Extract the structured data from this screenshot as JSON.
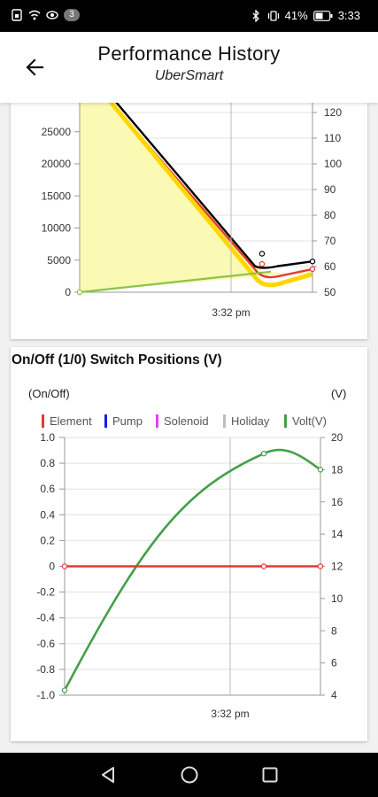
{
  "status_bar": {
    "time": "3:33",
    "battery": "41%",
    "notification_count": "3",
    "icons": [
      "sim-icon",
      "wifi-icon",
      "eye-icon",
      "bluetooth-icon",
      "vibrate-icon",
      "battery-icon"
    ]
  },
  "app_bar": {
    "title": "Performance History",
    "subtitle": "UberSmart",
    "back_icon": "arrow-left-icon"
  },
  "chart_data": [
    {
      "type": "line",
      "title": "",
      "x_tick_label": "3:32 pm",
      "y_left_ticks": [
        "25000",
        "20000",
        "15000",
        "10000",
        "5000",
        "0"
      ],
      "y_right_ticks": [
        "120",
        "110",
        "100",
        "90",
        "80",
        "70",
        "60",
        "50"
      ],
      "ylim_left": [
        0,
        30000
      ],
      "ylim_right": [
        50,
        125
      ],
      "x": [
        0,
        1,
        2,
        3
      ],
      "series": [
        {
          "axis": "right",
          "color": "#000000",
          "values": [
            null,
            130,
            65,
            62
          ]
        },
        {
          "axis": "right",
          "color": "#e53935",
          "values": [
            null,
            130,
            61,
            59
          ]
        },
        {
          "axis": "right",
          "color": "#ffd600",
          "values": [
            null,
            130,
            58,
            57
          ]
        },
        {
          "axis": "left",
          "color": "#8bc34a",
          "values": [
            0,
            null,
            3200,
            null
          ]
        }
      ],
      "area_fill_color": "#fafab4"
    },
    {
      "type": "line",
      "title": "On/Off (1/0) Switch Positions (V)",
      "ylabel_left": "(On/Off)",
      "ylabel_right": "(V)",
      "x_tick_label": "3:32 pm",
      "legend": [
        {
          "name": "Element",
          "color": "#e53935"
        },
        {
          "name": "Pump",
          "color": "#1a1ae6"
        },
        {
          "name": "Solenoid",
          "color": "#e040fb"
        },
        {
          "name": "Holiday",
          "color": "#bdbdbd"
        },
        {
          "name": "Volt(V)",
          "color": "#43a047"
        }
      ],
      "y_left_ticks": [
        "1.0",
        "0.8",
        "0.6",
        "0.4",
        "0.2",
        "0",
        "-0.2",
        "-0.4",
        "-0.6",
        "-0.8",
        "-1.0"
      ],
      "y_right_ticks": [
        "20",
        "18",
        "16",
        "14",
        "12",
        "10",
        "8",
        "6",
        "4"
      ],
      "ylim_left": [
        -1.0,
        1.0
      ],
      "ylim_right": [
        4,
        20
      ],
      "x": [
        0,
        2,
        3
      ],
      "series": [
        {
          "name": "Element",
          "axis": "left",
          "values": [
            0,
            0,
            0
          ]
        },
        {
          "name": "Volt(V)",
          "axis": "right",
          "values": [
            4.3,
            19.0,
            18.0
          ]
        }
      ]
    }
  ]
}
